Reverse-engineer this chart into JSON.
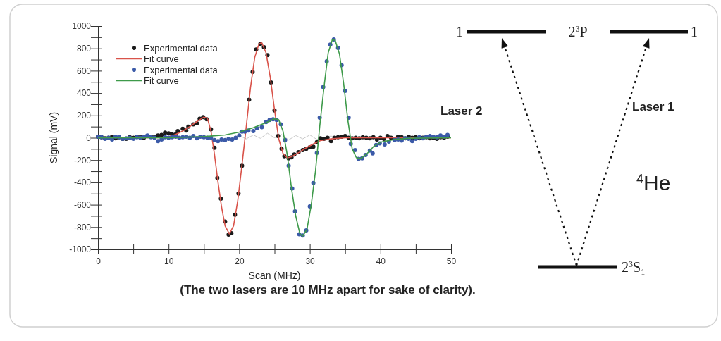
{
  "chart_data": {
    "type": "line",
    "xlabel": "Scan (MHz)",
    "ylabel": "Signal (mV)",
    "xlim": [
      0,
      50
    ],
    "ylim": [
      -1000,
      1000
    ],
    "xticks": [
      0,
      {
        "value": 5,
        "label": null
      },
      10,
      {
        "value": 15,
        "label": null
      },
      20,
      {
        "value": 25,
        "label": null
      },
      30,
      {
        "value": 35,
        "label": null
      },
      40,
      {
        "value": 45,
        "label": null
      },
      50
    ],
    "yticks": [
      -1000,
      {
        "value": -900,
        "label": null
      },
      -800,
      {
        "value": -700,
        "label": null
      },
      -600,
      {
        "value": -500,
        "label": null
      },
      -400,
      {
        "value": -300,
        "label": null
      },
      -200,
      {
        "value": -100,
        "label": null
      },
      0,
      {
        "value": 100,
        "label": null
      },
      200,
      {
        "value": 300,
        "label": null
      },
      400,
      {
        "value": 500,
        "label": null
      },
      600,
      {
        "value": 700,
        "label": null
      },
      800,
      {
        "value": 900,
        "label": null
      },
      1000
    ],
    "grid": false,
    "legend": "top left",
    "series": [
      {
        "color": "#c8c8c8",
        "x": [
          19,
          20,
          21,
          22,
          23,
          24,
          25,
          26,
          27,
          28,
          29,
          30,
          31,
          32,
          33,
          34,
          35,
          36
        ],
        "values": [
          0,
          20,
          -10,
          25,
          -5,
          40,
          0,
          30,
          -20,
          20,
          -10,
          25,
          -15,
          5,
          15,
          0,
          10,
          0
        ]
      },
      {
        "name": "Experimental data",
        "type": "scatter",
        "color": "#1a1a1a",
        "x": [
          0,
          0.5,
          1,
          1.5,
          2,
          2.5,
          3,
          3.5,
          4,
          4.5,
          5,
          5.5,
          6,
          6.5,
          7,
          7.5,
          8,
          8.5,
          9,
          9.5,
          10,
          10.5,
          11,
          11.3,
          12,
          12.5,
          12.8,
          13.5,
          14,
          14.4,
          14.9,
          15.4,
          16,
          16.5,
          16.9,
          17.4,
          18,
          18.5,
          18.9,
          19.4,
          19.9,
          20.4,
          21.4,
          21.9,
          22.4,
          23,
          23.5,
          24,
          24.5,
          25,
          25.5,
          26,
          26.4,
          27,
          27.4,
          27.8,
          28.4,
          29,
          29.5,
          30,
          30.5,
          31,
          31.5,
          32,
          32.5,
          33,
          33.5,
          34,
          34.5,
          35,
          35.5,
          36,
          36.5,
          37,
          37.5,
          38,
          38.5,
          39,
          39.5,
          40,
          40.5,
          41,
          41.5,
          42,
          42.5,
          43,
          43.5,
          44,
          44.5,
          45,
          45.5,
          46,
          46.5,
          47,
          47.5,
          48,
          48.5,
          49,
          49.5
        ],
        "values": [
          10,
          5,
          -5,
          0,
          10,
          -5,
          5,
          -10,
          -10,
          5,
          0,
          10,
          5,
          0,
          15,
          10,
          5,
          20,
          25,
          45,
          40,
          30,
          30,
          60,
          80,
          65,
          100,
          120,
          130,
          170,
          185,
          165,
          75,
          -90,
          -360,
          -545,
          -750,
          -867,
          -855,
          -690,
          -500,
          -250,
          340,
          590,
          790,
          840,
          810,
          740,
          495,
          245,
          15,
          -100,
          -165,
          -185,
          -175,
          -150,
          -130,
          -110,
          -100,
          -85,
          -80,
          -40,
          -5,
          -10,
          0,
          -30,
          0,
          5,
          10,
          15,
          0,
          -5,
          0,
          -5,
          5,
          0,
          -5,
          5,
          -15,
          0,
          -10,
          15,
          0,
          -10,
          10,
          5,
          -5,
          10,
          0,
          5,
          -5,
          0,
          5,
          -5,
          0,
          -10,
          5,
          0,
          10
        ]
      },
      {
        "name": "Fit curve",
        "color": "#d9534a",
        "x": [
          0,
          9,
          10,
          11,
          12,
          13,
          14,
          15,
          15.5,
          16,
          16.5,
          17,
          17.5,
          18,
          18.6,
          19.2,
          19.8,
          20.4,
          21,
          21.6,
          22.2,
          22.8,
          23.2,
          23.8,
          24.4,
          25,
          25.6,
          26.2,
          26.8,
          27.4,
          28.5,
          29.5,
          30.5,
          31.5,
          33,
          35,
          50
        ],
        "values": [
          0,
          0,
          10,
          30,
          60,
          100,
          145,
          185,
          175,
          60,
          -150,
          -400,
          -620,
          -790,
          -860,
          -790,
          -560,
          -240,
          100,
          450,
          720,
          840,
          850,
          760,
          540,
          250,
          -10,
          -140,
          -180,
          -170,
          -130,
          -90,
          -55,
          -25,
          -10,
          0,
          0
        ]
      },
      {
        "name": "Experimental data",
        "type": "scatter",
        "color": "#3b5aa8",
        "x": [
          0,
          0.5,
          1,
          1.5,
          2,
          2.5,
          3,
          3.5,
          4,
          4.5,
          5,
          5.5,
          6,
          6.5,
          7,
          7.5,
          8,
          8.5,
          9,
          9.5,
          10,
          10.5,
          11,
          11.5,
          12,
          12.5,
          13,
          13.5,
          14,
          14.5,
          15,
          15.5,
          16,
          16.5,
          17,
          17.5,
          18,
          18.5,
          19,
          19.5,
          20,
          20.4,
          20.8,
          21.3,
          22,
          22.5,
          23.2,
          23.8,
          24.3,
          24.8,
          25.3,
          25.9,
          26.5,
          27,
          27.5,
          27.9,
          28.5,
          29,
          29.5,
          30,
          30.5,
          31,
          31.4,
          31.9,
          32.4,
          32.9,
          33.4,
          34,
          34.5,
          35,
          35.5,
          35.8,
          36.4,
          36.9,
          37.4,
          37.9,
          38.5,
          38.9,
          39.4,
          39.9,
          40.6,
          41.2,
          42,
          42.5,
          43,
          43.5,
          44,
          44.5,
          45,
          45.5,
          46,
          46.5,
          47,
          47.5,
          48,
          48.5,
          49,
          49.5
        ],
        "values": [
          10,
          5,
          -10,
          0,
          -15,
          10,
          5,
          -10,
          -5,
          0,
          -10,
          5,
          0,
          10,
          20,
          5,
          0,
          -30,
          -15,
          5,
          0,
          5,
          10,
          0,
          5,
          10,
          0,
          15,
          -5,
          10,
          5,
          0,
          0,
          -20,
          -30,
          -15,
          -20,
          -10,
          -15,
          0,
          20,
          55,
          55,
          65,
          60,
          85,
          95,
          140,
          160,
          165,
          160,
          120,
          -20,
          -250,
          -455,
          -660,
          -865,
          -875,
          -830,
          -615,
          -405,
          -135,
          180,
          455,
          685,
          835,
          880,
          805,
          650,
          420,
          180,
          -55,
          -110,
          -190,
          -185,
          -155,
          -115,
          -140,
          -65,
          -50,
          -60,
          -35,
          -20,
          -15,
          -25,
          -5,
          -10,
          -30,
          -10,
          5,
          -5,
          10,
          15,
          10,
          5,
          20,
          10,
          25
        ]
      },
      {
        "name": "Fit curve",
        "color": "#3e9a4a",
        "x": [
          0,
          10,
          15,
          18,
          20,
          22,
          24,
          25,
          25.6,
          26.2,
          26.8,
          27.4,
          28,
          28.6,
          29,
          29.6,
          30.2,
          30.8,
          31.4,
          32,
          32.6,
          33.2,
          33.6,
          34.2,
          34.8,
          35.4,
          36,
          36.6,
          37.2,
          38,
          39,
          40,
          42,
          44,
          50
        ],
        "values": [
          0,
          0,
          10,
          25,
          50,
          90,
          140,
          170,
          160,
          60,
          -150,
          -450,
          -700,
          -860,
          -880,
          -820,
          -600,
          -300,
          100,
          450,
          760,
          880,
          870,
          750,
          480,
          150,
          -100,
          -180,
          -185,
          -150,
          -80,
          -40,
          -15,
          -5,
          0
        ]
      }
    ],
    "annotations": [
      "(The two lasers are 10 MHz apart for sake of clarity).",
      "1",
      "2$^{3}$P",
      "1",
      "Laser 2",
      "Laser 1",
      "$^{4}$He",
      "2$^{3}$S₁"
    ]
  }
}
